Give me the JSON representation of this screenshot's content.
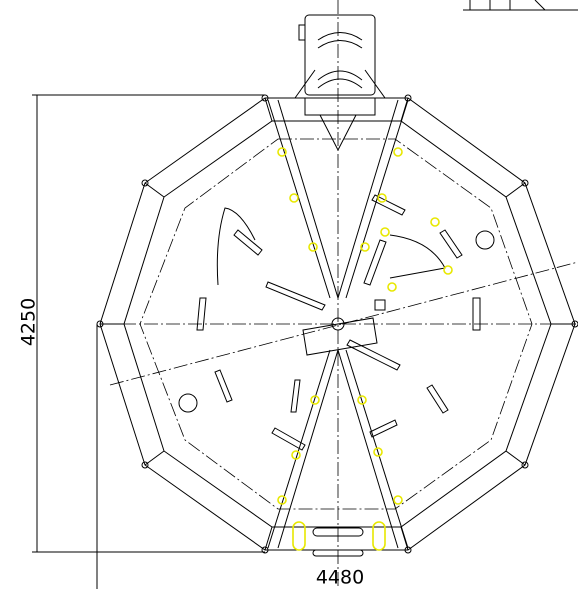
{
  "dimensions": {
    "height": "4250",
    "width": "4480"
  }
}
